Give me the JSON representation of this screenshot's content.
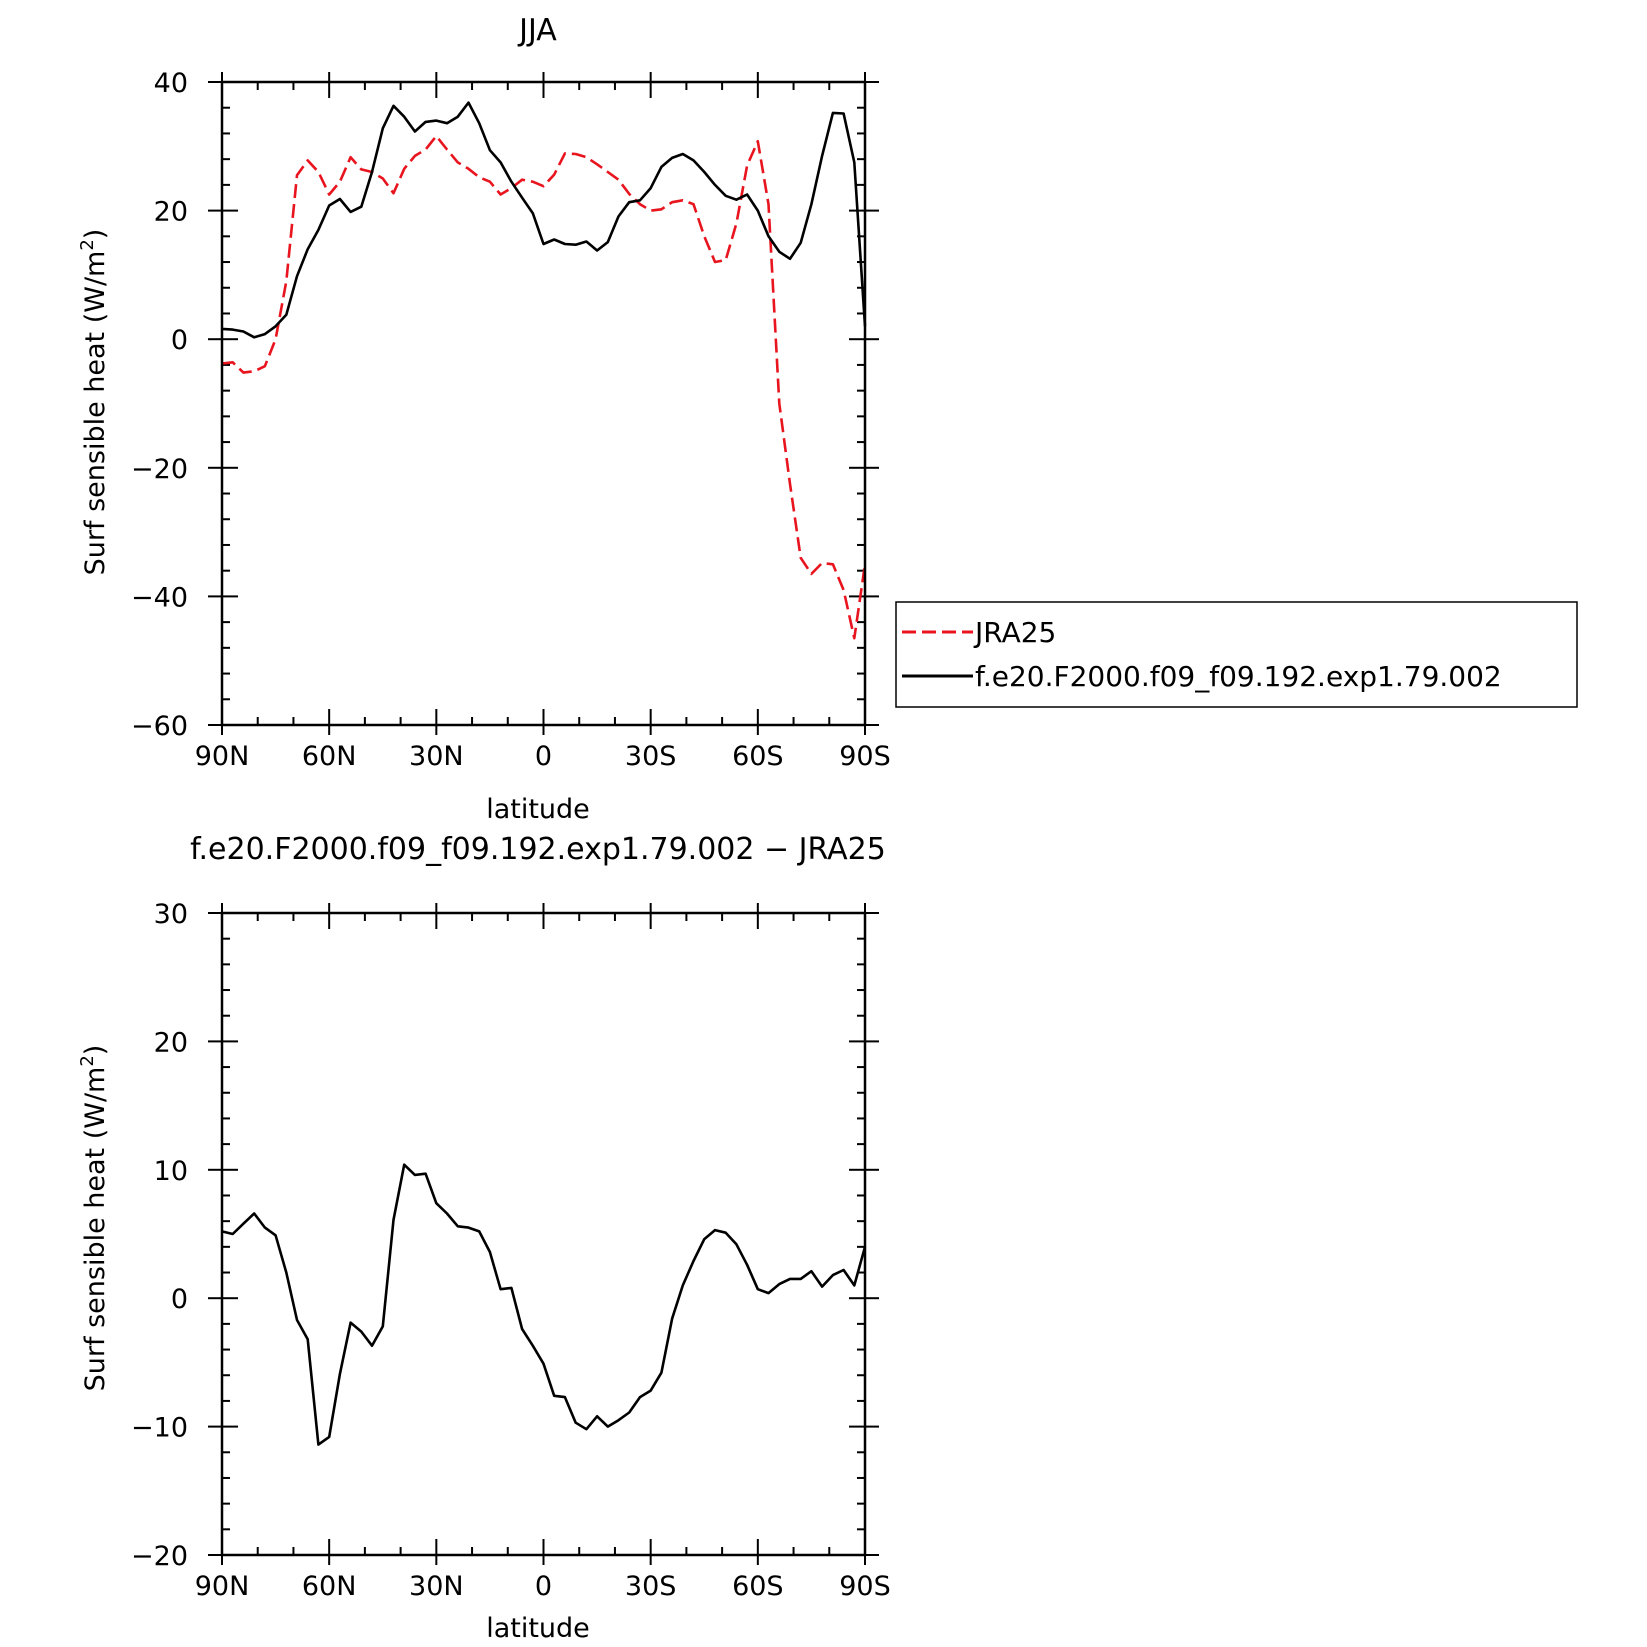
{
  "chart_data": [
    {
      "type": "line",
      "title": "JJA",
      "xlabel": "latitude",
      "ylabel": "Surf sensible heat (W/m",
      "ylabel_sup": "2",
      "ylabel_close": ")",
      "xlim": [
        90,
        -90
      ],
      "ylim": [
        -60,
        40
      ],
      "xticks": [
        90,
        60,
        30,
        0,
        -30,
        -60,
        -90
      ],
      "xtick_labels": [
        "90N",
        "60N",
        "30N",
        "0",
        "30S",
        "60S",
        "90S"
      ],
      "yticks": [
        40,
        20,
        0,
        -20,
        -40,
        -60
      ],
      "ytick_labels": [
        "40",
        "20",
        "0",
        "−20",
        "−40",
        "−60"
      ],
      "legend": "right",
      "series": [
        {
          "name": "JRA25",
          "color": "#e8141e",
          "dash": true,
          "x": [
            90,
            87,
            84,
            81,
            78,
            75,
            72,
            69,
            66,
            63,
            60,
            57,
            54,
            51,
            48,
            45,
            42,
            39,
            36,
            33,
            30,
            27,
            24,
            21,
            18,
            15,
            12,
            9,
            6,
            3,
            0,
            -3,
            -6,
            -9,
            -12,
            -15,
            -18,
            -21,
            -24,
            -27,
            -30,
            -33,
            -36,
            -39,
            -42,
            -45,
            -48,
            -51,
            -54,
            -57,
            -60,
            -63,
            -66,
            -69,
            -72,
            -75,
            -78,
            -81,
            -84,
            -87,
            -90
          ],
          "y": [
            -3.8,
            -3.6,
            -5.2,
            -5.0,
            -4.2,
            0,
            9,
            25.5,
            27.8,
            26,
            22.5,
            24.5,
            28.3,
            26.4,
            26,
            25,
            22.7,
            26.5,
            28.5,
            29.5,
            31.6,
            29.5,
            27.5,
            26.5,
            25.2,
            24.5,
            22.5,
            23.5,
            24.8,
            24.5,
            23.8,
            25.6,
            28.9,
            28.8,
            28.3,
            27.2,
            26,
            24.8,
            22.6,
            21,
            20,
            20.2,
            21.3,
            21.6,
            21,
            16,
            12,
            12.3,
            18,
            27,
            30.8,
            21,
            -10,
            -22.5,
            -34,
            -36.5,
            -34.8,
            -35,
            -39,
            -46.5,
            -35
          ]
        },
        {
          "name": "f.e20.F2000.f09_f09.192.exp1.79.002",
          "color": "#000000",
          "dash": false,
          "x": [
            90,
            87,
            84,
            81,
            78,
            75,
            72,
            69,
            66,
            63,
            60,
            57,
            54,
            51,
            48,
            45,
            42,
            39,
            36,
            33,
            30,
            27,
            24,
            21,
            18,
            15,
            12,
            9,
            6,
            3,
            0,
            -3,
            -6,
            -9,
            -12,
            -15,
            -18,
            -21,
            -24,
            -27,
            -30,
            -33,
            -36,
            -39,
            -42,
            -45,
            -48,
            -51,
            -54,
            -57,
            -60,
            -63,
            -66,
            -69,
            -72,
            -75,
            -78,
            -81,
            -84,
            -87,
            -90
          ],
          "y": [
            1.6,
            1.5,
            1.2,
            0.3,
            0.8,
            2,
            3.8,
            9.8,
            14,
            17,
            20.8,
            21.8,
            19.8,
            20.6,
            26,
            32.8,
            36.3,
            34.6,
            32.3,
            33.8,
            34,
            33.6,
            34.6,
            36.8,
            33.6,
            29.4,
            27.5,
            24.5,
            22,
            19.6,
            14.8,
            15.5,
            14.8,
            14.7,
            15.2,
            13.8,
            15.1,
            19.1,
            21.3,
            21.6,
            23.5,
            26.8,
            28.2,
            28.8,
            27.8,
            26,
            24,
            22.3,
            21.7,
            22.5,
            20,
            16,
            13.6,
            12.5,
            15,
            21,
            28.5,
            35.2,
            35.1,
            27.5,
            2
          ]
        }
      ]
    },
    {
      "type": "line",
      "title": "f.e20.F2000.f09_f09.192.exp1.79.002 − JRA25",
      "xlabel": "latitude",
      "ylabel": "Surf sensible heat (W/m",
      "ylabel_sup": "2",
      "ylabel_close": ")",
      "xlim": [
        90,
        -90
      ],
      "ylim": [
        -20,
        30
      ],
      "xticks": [
        90,
        60,
        30,
        0,
        -30,
        -60,
        -90
      ],
      "xtick_labels": [
        "90N",
        "60N",
        "30N",
        "0",
        "30S",
        "60S",
        "90S"
      ],
      "yticks": [
        30,
        20,
        10,
        0,
        -10,
        -20
      ],
      "ytick_labels": [
        "30",
        "20",
        "10",
        "0",
        "−10",
        "−20"
      ],
      "series": [
        {
          "color": "#000000",
          "dash": false,
          "x": [
            90,
            87,
            84,
            81,
            78,
            75,
            72,
            69,
            66,
            63,
            60,
            57,
            54,
            51,
            48,
            45,
            42,
            39,
            36,
            33,
            30,
            27,
            24,
            21,
            18,
            15,
            12,
            9,
            6,
            3,
            0,
            -3,
            -6,
            -9,
            -12,
            -15,
            -18,
            -21,
            -24,
            -27,
            -30,
            -33,
            -36,
            -39,
            -42,
            -45,
            -48,
            -51,
            -54,
            -57,
            -60,
            -63,
            -66,
            -69,
            -72,
            -75,
            -78,
            -81,
            -84,
            -87,
            -90
          ],
          "y": [
            5.2,
            5.0,
            5.8,
            6.6,
            5.5,
            4.9,
            2,
            -1.7,
            -3.2,
            -11.4,
            -10.8,
            -5.9,
            -1.9,
            -2.6,
            -3.7,
            -2.2,
            6.1,
            10.4,
            9.6,
            9.7,
            7.4,
            6.6,
            5.6,
            5.5,
            5.2,
            3.6,
            0.7,
            0.8,
            -2.4,
            -3.7,
            -5.1,
            -7.6,
            -7.7,
            -9.7,
            -10.2,
            -9.2,
            -10,
            -9.5,
            -8.9,
            -7.7,
            -7.2,
            -5.8,
            -1.6,
            1,
            2.9,
            4.6,
            5.3,
            5.1,
            4.2,
            2.6,
            0.7,
            0.4,
            1.1,
            1.5,
            1.5,
            2.1,
            0.9,
            1.8,
            2.2,
            1,
            4
          ]
        }
      ]
    }
  ]
}
